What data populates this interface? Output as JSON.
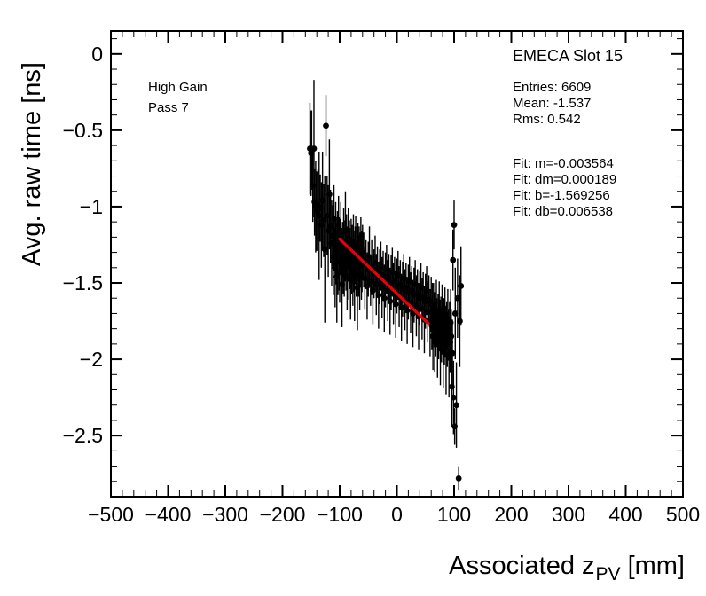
{
  "annotations": {
    "gain_label": "High Gain",
    "pass_label": "Pass 7",
    "region_title": "EMECA Slot 15",
    "stats": [
      "Entries: 6609",
      "Mean: -1.537",
      "Rms: 0.542"
    ],
    "fit_results": [
      "Fit: m=-0.003564",
      "Fit: dm=0.000189",
      "Fit: b=-1.569256",
      "Fit: db=0.006538"
    ]
  },
  "axes": {
    "y_title": "Avg. raw time [ns]",
    "x_title_prefix": "Associated z",
    "x_title_sub": "PV",
    "x_title_suffix": "[mm]"
  },
  "chart_data": {
    "type": "scatter",
    "title": "EMECA Slot 15",
    "xlabel": "Associated z_PV [mm]",
    "ylabel": "Avg. raw time [ns]",
    "xlim": [
      -500,
      500
    ],
    "ylim": [
      -2.9,
      0.15
    ],
    "x_major_ticks": [
      -500,
      -400,
      -300,
      -200,
      -100,
      0,
      100,
      200,
      300,
      400,
      500
    ],
    "x_minor_step": 20,
    "y_major_ticks": [
      0,
      -0.5,
      -1,
      -1.5,
      -2,
      -2.5
    ],
    "y_minor_step": 0.1,
    "grid": false,
    "legend": false,
    "marker_color": "#000000",
    "stats": {
      "entries": 6609,
      "mean": -1.537,
      "rms": 0.542
    },
    "fit": {
      "m": -0.003564,
      "dm": 0.000189,
      "b": -1.569256,
      "db": 0.006538,
      "x_range": [
        -100,
        55
      ],
      "color": "#e8000b"
    },
    "points": [
      [
        -152,
        -0.62,
        0.3
      ],
      [
        -150,
        -0.65,
        0.28
      ],
      [
        -149,
        -0.63,
        0.26
      ],
      [
        -147,
        -0.86,
        0.24
      ],
      [
        -145,
        -0.62,
        0.45
      ],
      [
        -144,
        -0.97,
        0.22
      ],
      [
        -142,
        -1.0,
        0.3
      ],
      [
        -140,
        -1.03,
        0.26
      ],
      [
        -138,
        -0.99,
        0.24
      ],
      [
        -136,
        -1.06,
        0.42
      ],
      [
        -134,
        -1.01,
        0.22
      ],
      [
        -132,
        -1.12,
        0.28
      ],
      [
        -130,
        -0.96,
        0.32
      ],
      [
        -128,
        -1.09,
        0.24
      ],
      [
        -126,
        -1.28,
        0.48
      ],
      [
        -124,
        -0.47,
        0.2
      ],
      [
        -122,
        -1.06,
        0.26
      ],
      [
        -120,
        -1.16,
        0.3
      ],
      [
        -118,
        -0.92,
        0.36
      ],
      [
        -116,
        -1.13,
        0.24
      ],
      [
        -114,
        -1.24,
        0.28
      ],
      [
        -112,
        -1.19,
        0.2
      ],
      [
        -111,
        -1.33,
        0.25
      ],
      [
        -110,
        -1.08,
        0.22
      ],
      [
        -109,
        -1.24,
        0.18
      ],
      [
        -108,
        -1.4,
        0.26
      ],
      [
        -107,
        -1.17,
        0.2
      ],
      [
        -106,
        -1.29,
        0.22
      ],
      [
        -105,
        -1.46,
        0.3
      ],
      [
        -104,
        -1.21,
        0.18
      ],
      [
        -103,
        -1.36,
        0.22
      ],
      [
        -102,
        -1.13,
        0.2
      ],
      [
        -101,
        -1.31,
        0.24
      ],
      [
        -100,
        -1.43,
        0.2
      ],
      [
        -99,
        -1.26,
        0.18
      ],
      [
        -98,
        -1.19,
        0.22
      ],
      [
        -97,
        -1.34,
        0.2
      ],
      [
        -96,
        -1.51,
        0.28
      ],
      [
        -95,
        -1.28,
        0.18
      ],
      [
        -94,
        -1.37,
        0.2
      ],
      [
        -93,
        -1.23,
        0.22
      ],
      [
        -92,
        -1.41,
        0.18
      ],
      [
        -91,
        -1.29,
        0.2
      ],
      [
        -90,
        -1.16,
        0.26
      ],
      [
        -89,
        -1.37,
        0.18
      ],
      [
        -88,
        -1.25,
        0.2
      ],
      [
        -87,
        -1.46,
        0.22
      ],
      [
        -86,
        -1.31,
        0.18
      ],
      [
        -85,
        -1.21,
        0.2
      ],
      [
        -84,
        -1.39,
        0.22
      ],
      [
        -83,
        -1.27,
        0.18
      ],
      [
        -82,
        -1.34,
        0.2
      ],
      [
        -81,
        -1.48,
        0.26
      ],
      [
        -80,
        -1.26,
        0.18
      ],
      [
        -79,
        -1.37,
        0.2
      ],
      [
        -78,
        -1.3,
        0.18
      ],
      [
        -77,
        -1.43,
        0.22
      ],
      [
        -76,
        -1.23,
        0.18
      ],
      [
        -75,
        -1.36,
        0.2
      ],
      [
        -74,
        -1.49,
        0.26
      ],
      [
        -73,
        -1.31,
        0.18
      ],
      [
        -72,
        -1.26,
        0.2
      ],
      [
        -71,
        -1.41,
        0.18
      ],
      [
        -70,
        -1.33,
        0.2
      ],
      [
        -69,
        -1.53,
        0.28
      ],
      [
        -68,
        -1.29,
        0.18
      ],
      [
        -67,
        -1.39,
        0.2
      ],
      [
        -66,
        -1.31,
        0.18
      ],
      [
        -65,
        -1.46,
        0.22
      ],
      [
        -64,
        -1.35,
        0.18
      ],
      [
        -63,
        -1.27,
        0.2
      ],
      [
        -62,
        -1.43,
        0.18
      ],
      [
        -61,
        -1.36,
        0.2
      ],
      [
        -60,
        -1.3,
        0.18
      ],
      [
        -58,
        -1.35,
        0.18
      ],
      [
        -56,
        -1.47,
        0.2
      ],
      [
        -54,
        -1.38,
        0.16
      ],
      [
        -52,
        -1.52,
        0.22
      ],
      [
        -50,
        -1.41,
        0.18
      ],
      [
        -48,
        -1.33,
        0.2
      ],
      [
        -46,
        -1.49,
        0.16
      ],
      [
        -44,
        -1.4,
        0.18
      ],
      [
        -42,
        -1.55,
        0.22
      ],
      [
        -40,
        -1.44,
        0.16
      ],
      [
        -38,
        -1.37,
        0.18
      ],
      [
        -36,
        -1.51,
        0.2
      ],
      [
        -34,
        -1.42,
        0.16
      ],
      [
        -32,
        -1.58,
        0.22
      ],
      [
        -30,
        -1.46,
        0.18
      ],
      [
        -28,
        -1.39,
        0.16
      ],
      [
        -26,
        -1.53,
        0.2
      ],
      [
        -24,
        -1.45,
        0.16
      ],
      [
        -22,
        -1.6,
        0.22
      ],
      [
        -20,
        -1.48,
        0.18
      ],
      [
        -18,
        -1.41,
        0.16
      ],
      [
        -16,
        -1.55,
        0.2
      ],
      [
        -14,
        -1.47,
        0.16
      ],
      [
        -12,
        -1.62,
        0.22
      ],
      [
        -10,
        -1.5,
        0.18
      ],
      [
        -8,
        -1.43,
        0.16
      ],
      [
        -6,
        -1.57,
        0.2
      ],
      [
        -4,
        -1.49,
        0.16
      ],
      [
        -2,
        -1.64,
        0.22
      ],
      [
        0,
        -1.52,
        0.18
      ],
      [
        2,
        -1.45,
        0.16
      ],
      [
        4,
        -1.59,
        0.2
      ],
      [
        6,
        -1.51,
        0.16
      ],
      [
        8,
        -1.66,
        0.22
      ],
      [
        10,
        -1.54,
        0.18
      ],
      [
        12,
        -1.47,
        0.16
      ],
      [
        14,
        -1.61,
        0.2
      ],
      [
        16,
        -1.53,
        0.16
      ],
      [
        18,
        -1.68,
        0.22
      ],
      [
        20,
        -1.56,
        0.18
      ],
      [
        22,
        -1.49,
        0.16
      ],
      [
        24,
        -1.63,
        0.2
      ],
      [
        26,
        -1.55,
        0.16
      ],
      [
        28,
        -1.7,
        0.22
      ],
      [
        30,
        -1.58,
        0.18
      ],
      [
        32,
        -1.51,
        0.16
      ],
      [
        34,
        -1.65,
        0.2
      ],
      [
        36,
        -1.57,
        0.16
      ],
      [
        38,
        -1.72,
        0.22
      ],
      [
        40,
        -1.6,
        0.18
      ],
      [
        42,
        -1.53,
        0.16
      ],
      [
        44,
        -1.67,
        0.2
      ],
      [
        46,
        -1.59,
        0.16
      ],
      [
        48,
        -1.74,
        0.22
      ],
      [
        50,
        -1.62,
        0.18
      ],
      [
        52,
        -1.55,
        0.16
      ],
      [
        54,
        -1.69,
        0.2
      ],
      [
        56,
        -1.61,
        0.16
      ],
      [
        58,
        -1.76,
        0.22
      ],
      [
        60,
        -1.64,
        0.18
      ],
      [
        61,
        -1.78,
        0.16
      ],
      [
        62,
        -1.7,
        0.2
      ],
      [
        63,
        -1.85,
        0.22
      ],
      [
        64,
        -1.66,
        0.16
      ],
      [
        65,
        -1.74,
        0.18
      ],
      [
        66,
        -1.88,
        0.2
      ],
      [
        67,
        -1.72,
        0.16
      ],
      [
        68,
        -1.8,
        0.18
      ],
      [
        69,
        -1.68,
        0.2
      ],
      [
        70,
        -1.76,
        0.16
      ],
      [
        71,
        -1.9,
        0.22
      ],
      [
        72,
        -1.73,
        0.16
      ],
      [
        73,
        -1.82,
        0.18
      ],
      [
        74,
        -1.69,
        0.2
      ],
      [
        75,
        -1.77,
        0.16
      ],
      [
        76,
        -1.93,
        0.24
      ],
      [
        77,
        -1.75,
        0.16
      ],
      [
        78,
        -1.84,
        0.18
      ],
      [
        79,
        -1.71,
        0.2
      ],
      [
        80,
        -1.79,
        0.16
      ],
      [
        81,
        -1.95,
        0.24
      ],
      [
        82,
        -1.76,
        0.16
      ],
      [
        83,
        -1.86,
        0.18
      ],
      [
        84,
        -1.73,
        0.2
      ],
      [
        85,
        -1.81,
        0.16
      ],
      [
        86,
        -1.97,
        0.26
      ],
      [
        87,
        -1.78,
        0.16
      ],
      [
        88,
        -1.87,
        0.18
      ],
      [
        89,
        -1.74,
        0.2
      ],
      [
        90,
        -1.83,
        0.16
      ],
      [
        91,
        -1.99,
        0.26
      ],
      [
        92,
        -1.8,
        0.18
      ],
      [
        93,
        -1.89,
        0.2
      ],
      [
        94,
        -1.76,
        0.22
      ],
      [
        95,
        -1.85,
        0.18
      ],
      [
        96,
        -2.18,
        0.26
      ],
      [
        97,
        -1.96,
        0.22
      ],
      [
        98,
        -1.35,
        0.2
      ],
      [
        99,
        -2.25,
        0.24
      ],
      [
        100,
        -1.12,
        0.16
      ],
      [
        101,
        -2.44,
        0.12
      ],
      [
        102,
        -1.7,
        0.3
      ],
      [
        104,
        -2.3,
        0.28
      ],
      [
        106,
        -1.6,
        0.26
      ],
      [
        108,
        -2.78,
        0.08
      ],
      [
        110,
        -1.75,
        0.3
      ],
      [
        112,
        -1.52,
        0.26
      ]
    ]
  }
}
